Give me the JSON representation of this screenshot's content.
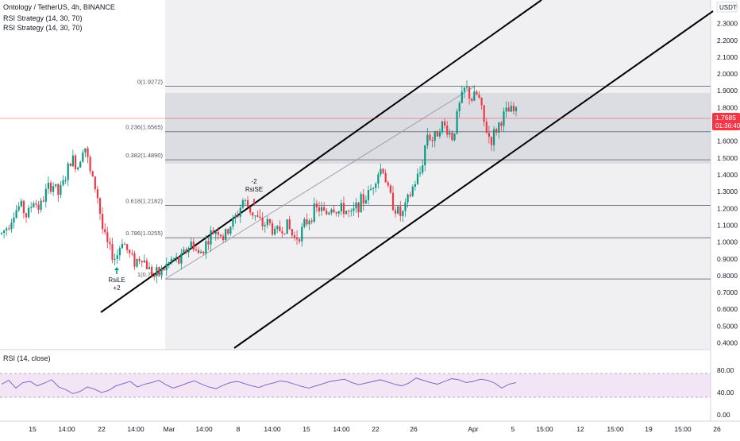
{
  "header": {
    "symbol_line": "Ontology / TetherUS, 4h, BINANCE",
    "indicators": [
      "RSI Strategy (14, 30, 70)",
      "RSI Strategy (14, 30, 70)"
    ],
    "currency": "USDT"
  },
  "price_axis": {
    "ticks": [
      "2.4000",
      "2.3000",
      "2.2000",
      "2.1000",
      "2.0000",
      "1.9000",
      "1.8000",
      "1.6000",
      "1.5000",
      "1.4000",
      "1.3000",
      "1.2000",
      "1.1000",
      "1.0000",
      "0.9000",
      "0.8000",
      "0.7000",
      "0.6000",
      "0.5000",
      "0.4000"
    ],
    "last_price": "1.7685",
    "countdown": "01:36:40",
    "last_price_color": "#f23645"
  },
  "time_axis": {
    "labels": [
      "15",
      "14:00",
      "22",
      "14:00",
      "Mar",
      "14:00",
      "8",
      "14:00",
      "15",
      "14:00",
      "22",
      "26",
      "Apr",
      "5",
      "15:00",
      "12",
      "15:00",
      "19",
      "15:00",
      "26"
    ]
  },
  "fibonacci": {
    "levels": [
      {
        "label": "0(1.9272)",
        "value": 1.9272
      },
      {
        "label": "0.236(1.6565)",
        "value": 1.6565
      },
      {
        "label": "0.382(1.4890)",
        "value": 1.489
      },
      {
        "label": "0.618(1.2182)",
        "value": 1.2182
      },
      {
        "label": "0.786(1.0255)",
        "value": 1.0255
      },
      {
        "label": "1(0.7800)",
        "value": 0.78
      }
    ]
  },
  "signals": [
    {
      "text_top": "-2",
      "text_bottom": "RsiSE",
      "direction": "down",
      "color": "#f23645"
    },
    {
      "text_top": "RsiLE",
      "text_bottom": "+2",
      "direction": "up",
      "color": "#089981"
    }
  ],
  "rsi": {
    "title": "RSI (14, close)",
    "ticks": [
      "80.00",
      "40.00",
      "0.00"
    ],
    "upper": 70,
    "lower": 30,
    "band_color": "#e1bee7",
    "line_color": "#7e57c2"
  },
  "chart_data": {
    "type": "candlestick",
    "title": "Ontology / TetherUS, 4h, BINANCE",
    "ylim": [
      0.38,
      2.45
    ],
    "y_scale": "linear",
    "up_color": "#089981",
    "down_color": "#f23645",
    "series": [
      {
        "name": "price_path",
        "values": [
          1.05,
          1.1,
          1.18,
          1.22,
          1.15,
          1.25,
          1.2,
          1.3,
          1.35,
          1.28,
          1.38,
          1.5,
          1.45,
          1.6,
          1.4,
          1.3,
          1.05,
          0.95,
          0.9,
          1.02,
          0.93,
          0.88,
          0.92,
          0.85,
          0.8,
          0.82,
          0.86,
          0.9,
          0.88,
          0.95,
          1.0,
          0.92,
          0.98,
          1.05,
          1.08,
          1.02,
          1.1,
          1.15,
          1.25,
          1.2,
          1.15,
          1.1,
          1.12,
          1.05,
          1.08,
          1.1,
          1.02,
          1.05,
          1.12,
          1.18,
          1.2,
          1.16,
          1.22,
          1.18,
          1.2,
          1.15,
          1.22,
          1.25,
          1.3,
          1.4,
          1.45,
          1.28,
          1.2,
          1.15,
          1.25,
          1.35,
          1.42,
          1.65,
          1.6,
          1.7,
          1.68,
          1.62,
          1.8,
          1.92,
          1.85,
          1.88,
          1.7,
          1.6,
          1.68,
          1.75,
          1.78,
          1.77
        ]
      },
      {
        "name": "RSI",
        "values": [
          55,
          62,
          48,
          58,
          60,
          52,
          57,
          63,
          50,
          45,
          38,
          42,
          50,
          46,
          40,
          44,
          52,
          56,
          60,
          50,
          55,
          58,
          62,
          54,
          48,
          52,
          57,
          61,
          55,
          50,
          47,
          53,
          58,
          60,
          56,
          52,
          49,
          54,
          57,
          61,
          59,
          55,
          51,
          48,
          52,
          56,
          60,
          62,
          64,
          58,
          54,
          57,
          60,
          63,
          59,
          55,
          52,
          57,
          66,
          62,
          58,
          55,
          60,
          65,
          63,
          58,
          60,
          64,
          62,
          57,
          48,
          55,
          58
        ]
      }
    ]
  }
}
